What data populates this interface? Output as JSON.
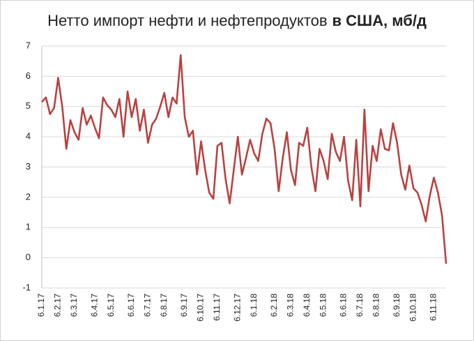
{
  "chart_data": {
    "type": "line",
    "title_parts": [
      "Нетто импорт нефти и нефтепродуктов",
      "в США, мб/д"
    ],
    "categories": [
      "6.1.17",
      null,
      null,
      null,
      "6.2.17",
      null,
      null,
      null,
      "6.3.17",
      null,
      null,
      null,
      null,
      "6.4.17",
      null,
      null,
      null,
      "6.5.17",
      null,
      null,
      null,
      null,
      "6.6.17",
      null,
      null,
      null,
      "6.7.17",
      null,
      null,
      null,
      "6.8.17",
      null,
      null,
      null,
      null,
      "6.9.17",
      null,
      null,
      null,
      "6.10.17",
      null,
      null,
      null,
      "6.11.17",
      null,
      null,
      null,
      null,
      "6.12.17",
      null,
      null,
      null,
      "6.1.18",
      null,
      null,
      null,
      null,
      "6.2.18",
      null,
      null,
      null,
      "6.3.18",
      null,
      null,
      null,
      "6.4.18",
      null,
      null,
      null,
      "6.5.18",
      null,
      null,
      null,
      null,
      "6.6.18",
      null,
      null,
      null,
      "6.7.18",
      null,
      null,
      null,
      "6.8.18",
      null,
      null,
      null,
      null,
      "6.9.18",
      null,
      null,
      null,
      "6.10.18",
      null,
      null,
      null,
      null,
      "6.11.18",
      null,
      null,
      null
    ],
    "values": [
      5.15,
      5.3,
      4.75,
      4.95,
      5.95,
      5.0,
      3.6,
      4.55,
      4.15,
      3.9,
      4.95,
      4.4,
      4.7,
      4.3,
      3.95,
      5.3,
      5.05,
      4.9,
      4.65,
      5.25,
      4.0,
      5.5,
      4.65,
      5.25,
      4.2,
      4.9,
      3.8,
      4.4,
      4.6,
      5.0,
      5.45,
      4.65,
      5.3,
      5.1,
      6.7,
      4.65,
      4.0,
      4.2,
      2.75,
      3.85,
      2.9,
      2.15,
      1.95,
      3.7,
      3.8,
      2.6,
      1.8,
      2.9,
      4.0,
      2.75,
      3.3,
      3.9,
      3.45,
      3.2,
      4.1,
      4.6,
      4.45,
      3.6,
      2.2,
      3.3,
      4.15,
      2.9,
      2.4,
      3.8,
      3.7,
      4.3,
      3.0,
      2.2,
      3.6,
      3.2,
      2.6,
      4.1,
      3.5,
      3.2,
      4.0,
      2.55,
      1.9,
      3.9,
      1.7,
      4.9,
      2.2,
      3.7,
      3.2,
      4.25,
      3.6,
      3.55,
      4.45,
      3.8,
      2.75,
      2.25,
      3.05,
      2.3,
      2.15,
      1.75,
      1.2,
      2.05,
      2.65,
      2.15,
      1.4,
      -0.2
    ],
    "color": "#b84240",
    "ylim": [
      -1,
      7
    ],
    "yticks": [
      -1,
      0,
      1,
      2,
      3,
      4,
      5,
      6,
      7
    ],
    "grid": true
  }
}
